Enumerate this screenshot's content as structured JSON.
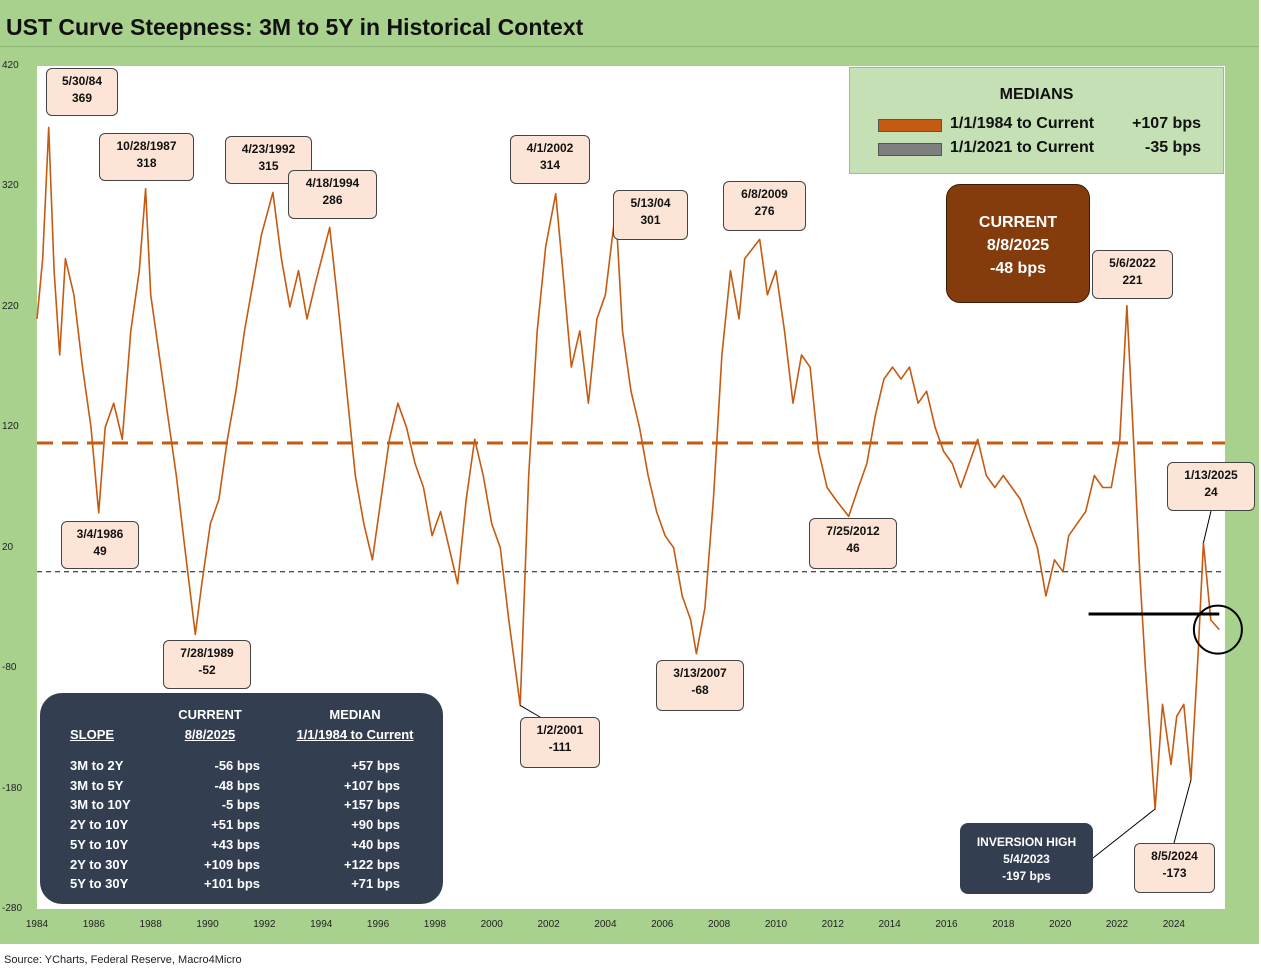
{
  "title": "UST Curve Steepness: 3M to 5Y in Historical Context",
  "source": "Source: YCharts, Federal Reserve, Macro4Micro",
  "colors": {
    "series": "#c55a11",
    "frame": "#a9d18e",
    "median_box": "#c5e0b4",
    "current_box": "#843c0c",
    "dark_box": "#333f50",
    "callout_fill": "#fce4d6",
    "median_2021": "#7f7f7f"
  },
  "y_ticks": [
    "420",
    "320",
    "220",
    "120",
    "20",
    "-80",
    "-180",
    "-280"
  ],
  "x_ticks": [
    "1984",
    "1986",
    "1988",
    "1990",
    "1992",
    "1994",
    "1996",
    "1998",
    "2000",
    "2002",
    "2004",
    "2006",
    "2008",
    "2010",
    "2012",
    "2014",
    "2016",
    "2018",
    "2020",
    "2022",
    "2024"
  ],
  "medians": {
    "title": "MEDIANS",
    "rows": [
      {
        "label": "1/1/1984 to Current",
        "value": "+107 bps",
        "color": "#c55a11"
      },
      {
        "label": "1/1/2021 to Current",
        "value": "-35 bps",
        "color": "#7f7f7f"
      }
    ]
  },
  "current": {
    "line1": "CURRENT",
    "line2": "8/8/2025",
    "line3": "-48 bps"
  },
  "inversion": {
    "line1": "INVERSION HIGH",
    "line2": "5/4/2023",
    "line3": "-197 bps"
  },
  "callouts": [
    {
      "id": "c1984",
      "date": "5/30/84",
      "value": "369"
    },
    {
      "id": "c1986",
      "date": "3/4/1986",
      "value": "49"
    },
    {
      "id": "c1987",
      "date": "10/28/1987",
      "value": "318"
    },
    {
      "id": "c1989",
      "date": "7/28/1989",
      "value": "-52"
    },
    {
      "id": "c1992",
      "date": "4/23/1992",
      "value": "315"
    },
    {
      "id": "c1994",
      "date": "4/18/1994",
      "value": "286"
    },
    {
      "id": "c2001",
      "date": "1/2/2001",
      "value": "-111"
    },
    {
      "id": "c2002",
      "date": "4/1/2002",
      "value": "314"
    },
    {
      "id": "c2004",
      "date": "5/13/04",
      "value": "301"
    },
    {
      "id": "c2007",
      "date": "3/13/2007",
      "value": "-68"
    },
    {
      "id": "c2009",
      "date": "6/8/2009",
      "value": "276"
    },
    {
      "id": "c2012",
      "date": "7/25/2012",
      "value": "46"
    },
    {
      "id": "c2022",
      "date": "5/6/2022",
      "value": "221"
    },
    {
      "id": "c2025",
      "date": "1/13/2025",
      "value": "24"
    },
    {
      "id": "c2024",
      "date": "8/5/2024",
      "value": "-173"
    }
  ],
  "slope_table": {
    "headers": {
      "col1": "SLOPE",
      "col2_top": "CURRENT",
      "col2": "8/8/2025",
      "col3_top": "MEDIAN",
      "col3": "1/1/1984 to Current"
    },
    "rows": [
      {
        "slope": "3M to 2Y",
        "current": "-56 bps",
        "median": "+57 bps"
      },
      {
        "slope": "3M to 5Y",
        "current": "-48 bps",
        "median": "+107 bps"
      },
      {
        "slope": "3M to 10Y",
        "current": "-5 bps",
        "median": "+157 bps"
      },
      {
        "slope": "2Y to 10Y",
        "current": "+51 bps",
        "median": "+90 bps"
      },
      {
        "slope": "5Y to 10Y",
        "current": "+43 bps",
        "median": "+40 bps"
      },
      {
        "slope": "2Y to 30Y",
        "current": "+109 bps",
        "median": "+122 bps"
      },
      {
        "slope": "5Y to 30Y",
        "current": "+101 bps",
        "median": "+71 bps"
      }
    ]
  },
  "chart_data": {
    "type": "line",
    "title": "UST Curve Steepness: 3M to 5Y in Historical Context",
    "ylim": [
      -280,
      420
    ],
    "xlim": [
      1984,
      2025.8
    ],
    "series": [
      {
        "points": [
          [
            1984.0,
            210
          ],
          [
            1984.2,
            260
          ],
          [
            1984.41,
            369
          ],
          [
            1984.6,
            250
          ],
          [
            1984.8,
            180
          ],
          [
            1985.0,
            260
          ],
          [
            1985.3,
            230
          ],
          [
            1985.6,
            170
          ],
          [
            1985.9,
            120
          ],
          [
            1986.17,
            49
          ],
          [
            1986.4,
            120
          ],
          [
            1986.7,
            140
          ],
          [
            1987.0,
            110
          ],
          [
            1987.3,
            200
          ],
          [
            1987.6,
            250
          ],
          [
            1987.82,
            318
          ],
          [
            1988.0,
            230
          ],
          [
            1988.3,
            180
          ],
          [
            1988.6,
            130
          ],
          [
            1988.9,
            80
          ],
          [
            1989.2,
            20
          ],
          [
            1989.57,
            -52
          ],
          [
            1989.8,
            -10
          ],
          [
            1990.1,
            40
          ],
          [
            1990.4,
            60
          ],
          [
            1990.7,
            110
          ],
          [
            1991.0,
            150
          ],
          [
            1991.3,
            200
          ],
          [
            1991.6,
            240
          ],
          [
            1991.9,
            280
          ],
          [
            1992.3,
            315
          ],
          [
            1992.6,
            260
          ],
          [
            1992.9,
            220
          ],
          [
            1993.2,
            250
          ],
          [
            1993.5,
            210
          ],
          [
            1993.8,
            240
          ],
          [
            1994.3,
            286
          ],
          [
            1994.6,
            220
          ],
          [
            1994.9,
            150
          ],
          [
            1995.2,
            80
          ],
          [
            1995.5,
            40
          ],
          [
            1995.8,
            10
          ],
          [
            1996.1,
            60
          ],
          [
            1996.4,
            110
          ],
          [
            1996.7,
            140
          ],
          [
            1997.0,
            120
          ],
          [
            1997.3,
            90
          ],
          [
            1997.6,
            70
          ],
          [
            1997.9,
            30
          ],
          [
            1998.2,
            50
          ],
          [
            1998.5,
            20
          ],
          [
            1998.8,
            -10
          ],
          [
            1999.1,
            60
          ],
          [
            1999.4,
            110
          ],
          [
            1999.7,
            80
          ],
          [
            2000.0,
            40
          ],
          [
            2000.3,
            20
          ],
          [
            2000.6,
            -40
          ],
          [
            2001.0,
            -111
          ],
          [
            2001.3,
            80
          ],
          [
            2001.6,
            200
          ],
          [
            2001.9,
            270
          ],
          [
            2002.25,
            314
          ],
          [
            2002.5,
            250
          ],
          [
            2002.8,
            170
          ],
          [
            2003.1,
            200
          ],
          [
            2003.4,
            140
          ],
          [
            2003.7,
            210
          ],
          [
            2004.0,
            230
          ],
          [
            2004.36,
            301
          ],
          [
            2004.6,
            200
          ],
          [
            2004.9,
            150
          ],
          [
            2005.2,
            120
          ],
          [
            2005.5,
            80
          ],
          [
            2005.8,
            50
          ],
          [
            2006.1,
            30
          ],
          [
            2006.4,
            20
          ],
          [
            2006.7,
            -20
          ],
          [
            2007.0,
            -40
          ],
          [
            2007.2,
            -68
          ],
          [
            2007.5,
            -30
          ],
          [
            2007.8,
            60
          ],
          [
            2008.1,
            180
          ],
          [
            2008.4,
            250
          ],
          [
            2008.7,
            210
          ],
          [
            2008.9,
            260
          ],
          [
            2009.43,
            276
          ],
          [
            2009.7,
            230
          ],
          [
            2010.0,
            250
          ],
          [
            2010.3,
            200
          ],
          [
            2010.6,
            140
          ],
          [
            2010.9,
            180
          ],
          [
            2011.2,
            170
          ],
          [
            2011.5,
            100
          ],
          [
            2011.8,
            70
          ],
          [
            2012.1,
            60
          ],
          [
            2012.56,
            46
          ],
          [
            2012.9,
            70
          ],
          [
            2013.2,
            90
          ],
          [
            2013.5,
            130
          ],
          [
            2013.8,
            160
          ],
          [
            2014.1,
            170
          ],
          [
            2014.4,
            160
          ],
          [
            2014.7,
            170
          ],
          [
            2015.0,
            140
          ],
          [
            2015.3,
            150
          ],
          [
            2015.6,
            120
          ],
          [
            2015.9,
            100
          ],
          [
            2016.2,
            90
          ],
          [
            2016.5,
            70
          ],
          [
            2016.8,
            90
          ],
          [
            2017.1,
            110
          ],
          [
            2017.4,
            80
          ],
          [
            2017.7,
            70
          ],
          [
            2018.0,
            80
          ],
          [
            2018.3,
            70
          ],
          [
            2018.6,
            60
          ],
          [
            2018.9,
            40
          ],
          [
            2019.2,
            20
          ],
          [
            2019.5,
            -20
          ],
          [
            2019.8,
            10
          ],
          [
            2020.1,
            0
          ],
          [
            2020.3,
            30
          ],
          [
            2020.6,
            40
          ],
          [
            2020.9,
            50
          ],
          [
            2021.2,
            80
          ],
          [
            2021.5,
            70
          ],
          [
            2021.8,
            70
          ],
          [
            2022.1,
            110
          ],
          [
            2022.35,
            221
          ],
          [
            2022.6,
            100
          ],
          [
            2022.8,
            0
          ],
          [
            2023.0,
            -80
          ],
          [
            2023.34,
            -197
          ],
          [
            2023.6,
            -110
          ],
          [
            2023.9,
            -160
          ],
          [
            2024.1,
            -120
          ],
          [
            2024.35,
            -110
          ],
          [
            2024.6,
            -173
          ],
          [
            2024.85,
            -70
          ],
          [
            2025.04,
            24
          ],
          [
            2025.3,
            -40
          ],
          [
            2025.6,
            -48
          ]
        ]
      }
    ],
    "median_value": 107,
    "zero_line": 0,
    "current_line": {
      "from_year": 2021.0,
      "to_year": 2025.6,
      "value": -35
    },
    "highlight_circle": {
      "year": 2025.55,
      "value": -48
    }
  }
}
